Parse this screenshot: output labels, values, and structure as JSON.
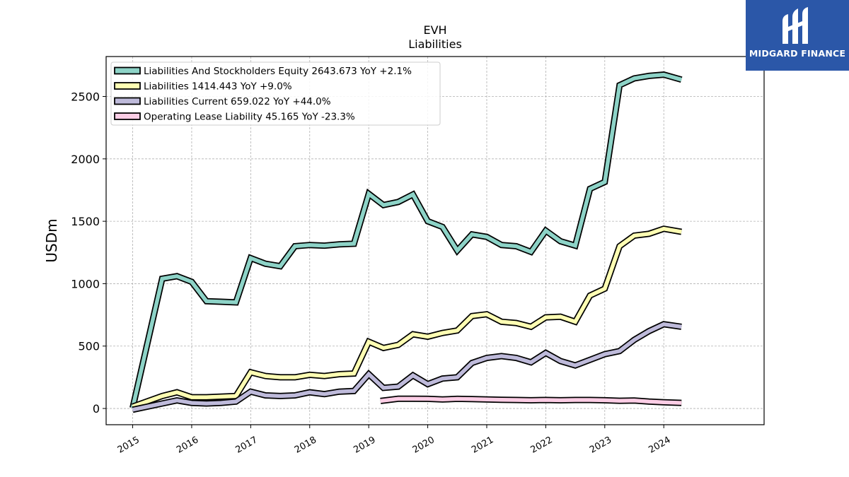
{
  "brand": {
    "name": "MIDGARD FINANCE",
    "bg_color": "#2b57a8"
  },
  "chart_data": {
    "type": "line",
    "title": "EVH",
    "subtitle": "Liabilities",
    "ylabel": "USDm",
    "xlabel": "",
    "xlim": [
      2014.55,
      2025.7
    ],
    "ylim": [
      -130,
      2820
    ],
    "yticks": [
      0,
      500,
      1000,
      1500,
      2000,
      2500
    ],
    "xticks": [
      2015,
      2016,
      2017,
      2018,
      2019,
      2020,
      2021,
      2022,
      2023,
      2024
    ],
    "grid": true,
    "legend_position": "top-left",
    "series": [
      {
        "name": "Liabilities And Stockholders Equity",
        "legend_label": "Liabilities And Stockholders Equity  2643.673 YoY +2.1%",
        "color": "#8dd3c7",
        "points": [
          [
            2015.0,
            5
          ],
          [
            2015.5,
            1040
          ],
          [
            2015.75,
            1060
          ],
          [
            2016.0,
            1015
          ],
          [
            2016.25,
            860
          ],
          [
            2016.5,
            855
          ],
          [
            2016.75,
            850
          ],
          [
            2017.0,
            1205
          ],
          [
            2017.25,
            1160
          ],
          [
            2017.5,
            1140
          ],
          [
            2017.75,
            1300
          ],
          [
            2018.0,
            1310
          ],
          [
            2018.25,
            1305
          ],
          [
            2018.5,
            1315
          ],
          [
            2018.75,
            1320
          ],
          [
            2019.0,
            1720
          ],
          [
            2019.25,
            1630
          ],
          [
            2019.5,
            1655
          ],
          [
            2019.75,
            1715
          ],
          [
            2020.0,
            1500
          ],
          [
            2020.25,
            1455
          ],
          [
            2020.5,
            1265
          ],
          [
            2020.75,
            1395
          ],
          [
            2021.0,
            1375
          ],
          [
            2021.25,
            1310
          ],
          [
            2021.5,
            1300
          ],
          [
            2021.75,
            1255
          ],
          [
            2022.0,
            1425
          ],
          [
            2022.25,
            1340
          ],
          [
            2022.5,
            1305
          ],
          [
            2022.75,
            1760
          ],
          [
            2023.0,
            1815
          ],
          [
            2023.25,
            2590
          ],
          [
            2023.5,
            2645
          ],
          [
            2023.75,
            2665
          ],
          [
            2024.0,
            2675
          ],
          [
            2024.3,
            2635
          ]
        ]
      },
      {
        "name": "Liabilities",
        "legend_label": "Liabilities  1414.443 YoY +9.0%",
        "color": "#ffffb3",
        "points": [
          [
            2015.0,
            15
          ],
          [
            2015.5,
            100
          ],
          [
            2015.75,
            130
          ],
          [
            2016.0,
            90
          ],
          [
            2016.25,
            90
          ],
          [
            2016.5,
            95
          ],
          [
            2016.75,
            100
          ],
          [
            2017.0,
            290
          ],
          [
            2017.25,
            260
          ],
          [
            2017.5,
            250
          ],
          [
            2017.75,
            250
          ],
          [
            2018.0,
            270
          ],
          [
            2018.25,
            260
          ],
          [
            2018.5,
            275
          ],
          [
            2018.75,
            280
          ],
          [
            2019.0,
            535
          ],
          [
            2019.25,
            485
          ],
          [
            2019.5,
            510
          ],
          [
            2019.75,
            595
          ],
          [
            2020.0,
            575
          ],
          [
            2020.25,
            605
          ],
          [
            2020.5,
            625
          ],
          [
            2020.75,
            740
          ],
          [
            2021.0,
            755
          ],
          [
            2021.25,
            695
          ],
          [
            2021.5,
            685
          ],
          [
            2021.75,
            655
          ],
          [
            2022.0,
            730
          ],
          [
            2022.25,
            735
          ],
          [
            2022.5,
            695
          ],
          [
            2022.75,
            905
          ],
          [
            2023.0,
            960
          ],
          [
            2023.25,
            1300
          ],
          [
            2023.5,
            1385
          ],
          [
            2023.75,
            1400
          ],
          [
            2024.0,
            1440
          ],
          [
            2024.3,
            1415
          ]
        ]
      },
      {
        "name": "Liabilities Current",
        "legend_label": "Liabilities Current  659.022 YoY +44.0%",
        "color": "#bebada",
        "points": [
          [
            2015.0,
            -10
          ],
          [
            2015.5,
            40
          ],
          [
            2015.75,
            65
          ],
          [
            2016.0,
            45
          ],
          [
            2016.25,
            40
          ],
          [
            2016.5,
            45
          ],
          [
            2016.75,
            55
          ],
          [
            2017.0,
            135
          ],
          [
            2017.25,
            105
          ],
          [
            2017.5,
            100
          ],
          [
            2017.75,
            105
          ],
          [
            2018.0,
            130
          ],
          [
            2018.25,
            115
          ],
          [
            2018.5,
            135
          ],
          [
            2018.75,
            140
          ],
          [
            2019.0,
            275
          ],
          [
            2019.25,
            165
          ],
          [
            2019.5,
            175
          ],
          [
            2019.75,
            265
          ],
          [
            2020.0,
            195
          ],
          [
            2020.25,
            240
          ],
          [
            2020.5,
            250
          ],
          [
            2020.75,
            365
          ],
          [
            2021.0,
            405
          ],
          [
            2021.25,
            420
          ],
          [
            2021.5,
            405
          ],
          [
            2021.75,
            370
          ],
          [
            2022.0,
            445
          ],
          [
            2022.25,
            380
          ],
          [
            2022.5,
            345
          ],
          [
            2022.75,
            390
          ],
          [
            2023.0,
            435
          ],
          [
            2023.25,
            460
          ],
          [
            2023.5,
            550
          ],
          [
            2023.75,
            620
          ],
          [
            2024.0,
            675
          ],
          [
            2024.3,
            655
          ]
        ]
      },
      {
        "name": "Operating Lease Liability",
        "legend_label": "Operating Lease Liability  45.165 YoY -23.3%",
        "color": "#fccde5",
        "points": [
          [
            2019.2,
            60
          ],
          [
            2019.5,
            78
          ],
          [
            2019.75,
            78
          ],
          [
            2020.0,
            77
          ],
          [
            2020.25,
            72
          ],
          [
            2020.5,
            77
          ],
          [
            2020.75,
            75
          ],
          [
            2021.0,
            72
          ],
          [
            2021.25,
            70
          ],
          [
            2021.5,
            68
          ],
          [
            2021.75,
            66
          ],
          [
            2022.0,
            68
          ],
          [
            2022.25,
            66
          ],
          [
            2022.5,
            68
          ],
          [
            2022.75,
            68
          ],
          [
            2023.0,
            66
          ],
          [
            2023.25,
            62
          ],
          [
            2023.5,
            64
          ],
          [
            2023.75,
            56
          ],
          [
            2024.0,
            50
          ],
          [
            2024.3,
            45
          ]
        ]
      }
    ]
  }
}
